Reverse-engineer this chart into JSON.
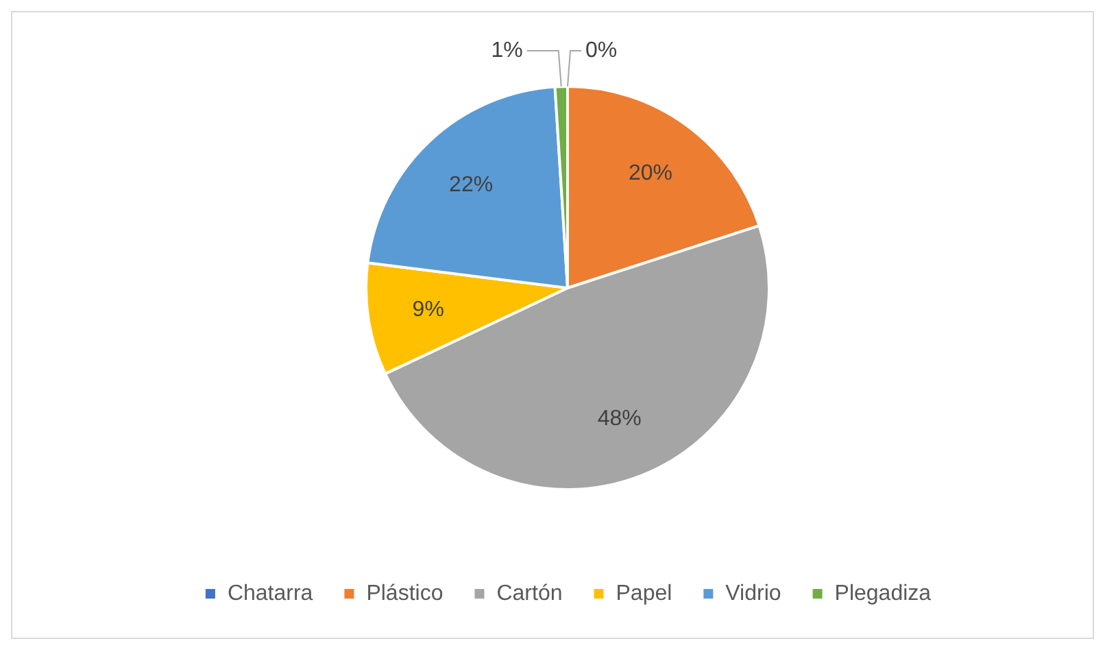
{
  "chart_data": {
    "type": "pie",
    "categories": [
      "Chatarra",
      "Plástico",
      "Cartón",
      "Papel",
      "Vidrio",
      "Plegadiza"
    ],
    "values": [
      0,
      20,
      48,
      9,
      22,
      1
    ],
    "value_labels": [
      "0%",
      "20%",
      "48%",
      "9%",
      "22%",
      "1%"
    ],
    "colors": [
      "#4472c4",
      "#ed7d31",
      "#a5a5a5",
      "#ffc000",
      "#5b9bd5",
      "#70ad47"
    ],
    "legend": "bottom"
  }
}
